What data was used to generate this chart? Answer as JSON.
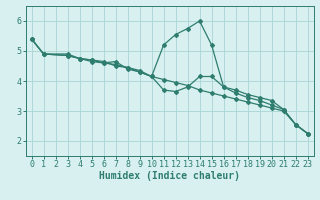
{
  "line1": {
    "x": [
      0,
      1,
      3,
      4,
      5,
      6,
      7,
      8,
      9,
      10,
      11,
      12,
      13,
      14,
      15,
      16,
      17,
      18,
      19,
      20,
      21,
      22,
      23
    ],
    "y": [
      5.4,
      4.9,
      4.9,
      4.75,
      4.7,
      4.65,
      4.5,
      4.45,
      4.3,
      4.15,
      5.2,
      5.55,
      5.75,
      6.0,
      5.2,
      3.8,
      3.7,
      3.55,
      3.45,
      3.35,
      3.05,
      2.55,
      2.25
    ]
  },
  "line2": {
    "x": [
      0,
      1,
      3,
      4,
      5,
      6,
      7,
      8,
      9,
      10,
      11,
      12,
      13,
      14,
      15,
      16,
      17,
      18,
      19,
      20,
      21,
      22,
      23
    ],
    "y": [
      5.4,
      4.9,
      4.85,
      4.75,
      4.7,
      4.6,
      4.55,
      4.45,
      4.35,
      4.15,
      4.05,
      3.95,
      3.85,
      3.7,
      3.6,
      3.5,
      3.4,
      3.3,
      3.2,
      3.1,
      3.0,
      2.55,
      2.25
    ]
  },
  "line3": {
    "x": [
      0,
      1,
      3,
      4,
      5,
      6,
      7,
      8,
      9,
      10,
      11,
      12,
      13,
      14,
      15,
      16,
      17,
      18,
      19,
      20,
      21,
      22,
      23
    ],
    "y": [
      5.4,
      4.9,
      4.85,
      4.75,
      4.65,
      4.6,
      4.65,
      4.4,
      4.3,
      4.15,
      3.7,
      3.65,
      3.8,
      4.15,
      4.15,
      3.8,
      3.6,
      3.45,
      3.35,
      3.2,
      3.05,
      2.55,
      2.25
    ]
  },
  "color": "#2e7d6e",
  "bg_color": "#d8f0f0",
  "grid_color": "#aad4d4",
  "xlabel": "Humidex (Indice chaleur)",
  "ylim": [
    1.5,
    6.5
  ],
  "xlim": [
    -0.5,
    23.5
  ],
  "yticks": [
    2,
    3,
    4,
    5,
    6
  ],
  "xticks": [
    0,
    1,
    2,
    3,
    4,
    5,
    6,
    7,
    8,
    9,
    10,
    11,
    12,
    13,
    14,
    15,
    16,
    17,
    18,
    19,
    20,
    21,
    22,
    23
  ],
  "marker": "D",
  "markersize": 2.0,
  "linewidth": 0.9,
  "xlabel_fontsize": 7,
  "tick_fontsize": 6
}
